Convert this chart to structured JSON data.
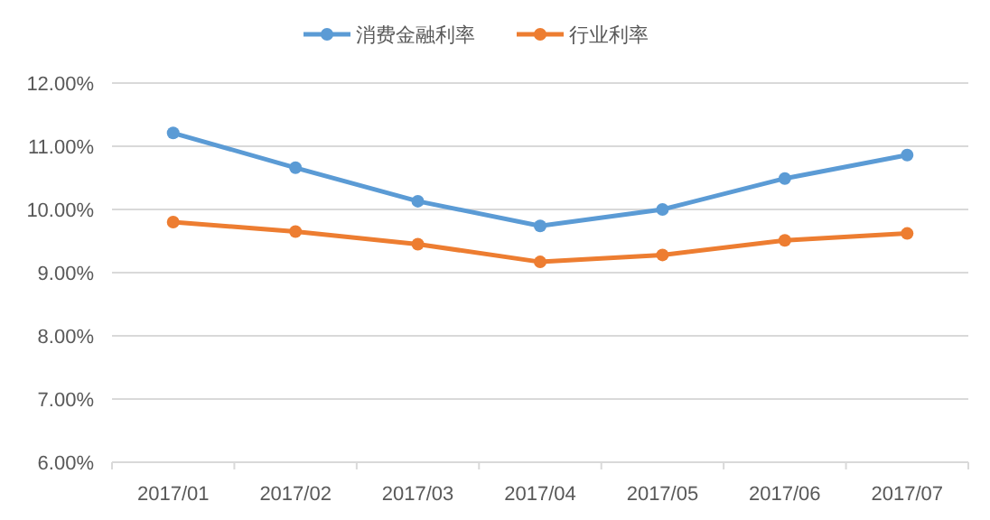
{
  "chart_data": {
    "type": "line",
    "categories": [
      "2017/01",
      "2017/02",
      "2017/03",
      "2017/04",
      "2017/05",
      "2017/06",
      "2017/07"
    ],
    "series": [
      {
        "name": "消费金融利率",
        "color": "#5b9bd5",
        "values": [
          11.21,
          10.66,
          10.13,
          9.74,
          10.0,
          10.49,
          10.86
        ]
      },
      {
        "name": "行业利率",
        "color": "#ed7d31",
        "values": [
          9.8,
          9.65,
          9.45,
          9.17,
          9.28,
          9.51,
          9.62
        ]
      }
    ],
    "ylim": [
      6,
      12
    ],
    "yticks": [
      {
        "value": 6,
        "label": "6.00%"
      },
      {
        "value": 7,
        "label": "7.00%"
      },
      {
        "value": 8,
        "label": "8.00%"
      },
      {
        "value": 9,
        "label": "9.00%"
      },
      {
        "value": 10,
        "label": "10.00%"
      },
      {
        "value": 11,
        "label": "11.00%"
      },
      {
        "value": 12,
        "label": "12.00%"
      }
    ],
    "grid": "y",
    "legend": "top",
    "marker": "circle",
    "line_style": "solid"
  }
}
